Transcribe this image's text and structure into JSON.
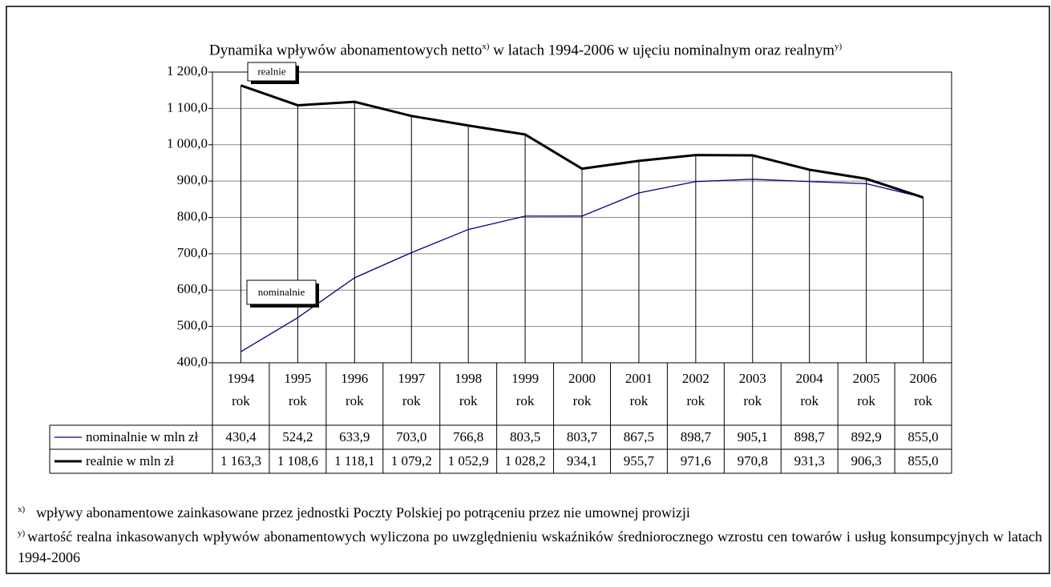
{
  "chart_data": {
    "type": "line",
    "title": [
      "Dynamika wpływów abonamentowych netto",
      "x)",
      " w latach 1994-2006 w ujęciu nominalnym oraz realnym",
      "y)"
    ],
    "categories": [
      "1994 rok",
      "1995 rok",
      "1996 rok",
      "1997 rok",
      "1998 rok",
      "1999 rok",
      "2000 rok",
      "2001 rok",
      "2002 rok",
      "2003 rok",
      "2004 rok",
      "2005 rok",
      "2006 rok"
    ],
    "series": [
      {
        "name": "nominalnie w mln zł",
        "color": "#000080",
        "values": [
          430.4,
          524.2,
          633.9,
          703.0,
          766.8,
          803.5,
          803.7,
          867.5,
          898.7,
          905.1,
          898.7,
          892.9,
          855.0
        ],
        "value_labels": [
          "430,4",
          "524,2",
          "633,9",
          "703,0",
          "766,8",
          "803,5",
          "803,7",
          "867,5",
          "898,7",
          "905,1",
          "898,7",
          "892,9",
          "855,0"
        ]
      },
      {
        "name": "realnie w mln zł",
        "color": "#000000",
        "values": [
          1163.3,
          1108.6,
          1118.1,
          1079.2,
          1052.9,
          1028.2,
          934.1,
          955.7,
          971.6,
          970.8,
          931.3,
          906.3,
          855.0
        ],
        "value_labels": [
          "1 163,3",
          "1 108,6",
          "1 118,1",
          "1 079,2",
          "1 052,9",
          "1 028,2",
          "934,1",
          "955,7",
          "971,6",
          "970,8",
          "931,3",
          "906,3",
          "855,0"
        ]
      }
    ],
    "ylim": [
      400,
      1200
    ],
    "yticks": [
      {
        "value": 400,
        "label": "400,0"
      },
      {
        "value": 500,
        "label": "500,0"
      },
      {
        "value": 600,
        "label": "600,0"
      },
      {
        "value": 700,
        "label": "700,0"
      },
      {
        "value": 800,
        "label": "800,0"
      },
      {
        "value": 900,
        "label": "900,0"
      },
      {
        "value": 1000,
        "label": "1 000,0"
      },
      {
        "value": 1100,
        "label": "1 100,0"
      },
      {
        "value": 1200,
        "label": "1 200,0"
      }
    ],
    "grid": true,
    "annotations": [
      "realnie",
      "nominalnie"
    ],
    "footnotes": [
      {
        "mark": "x)",
        "text": "wpływy abonamentowe zainkasowane przez jednostki Poczty Polskiej po potrąceniu przez nie umownej prowizji"
      },
      {
        "mark": "y)",
        "text": "wartość realna inkasowanych wpływów abonamentowych wyliczona po uwzględnieniu wskaźników średniorocznego wzrostu cen towarów i usług konsumpcyjnych w latach 1994-2006"
      }
    ]
  }
}
